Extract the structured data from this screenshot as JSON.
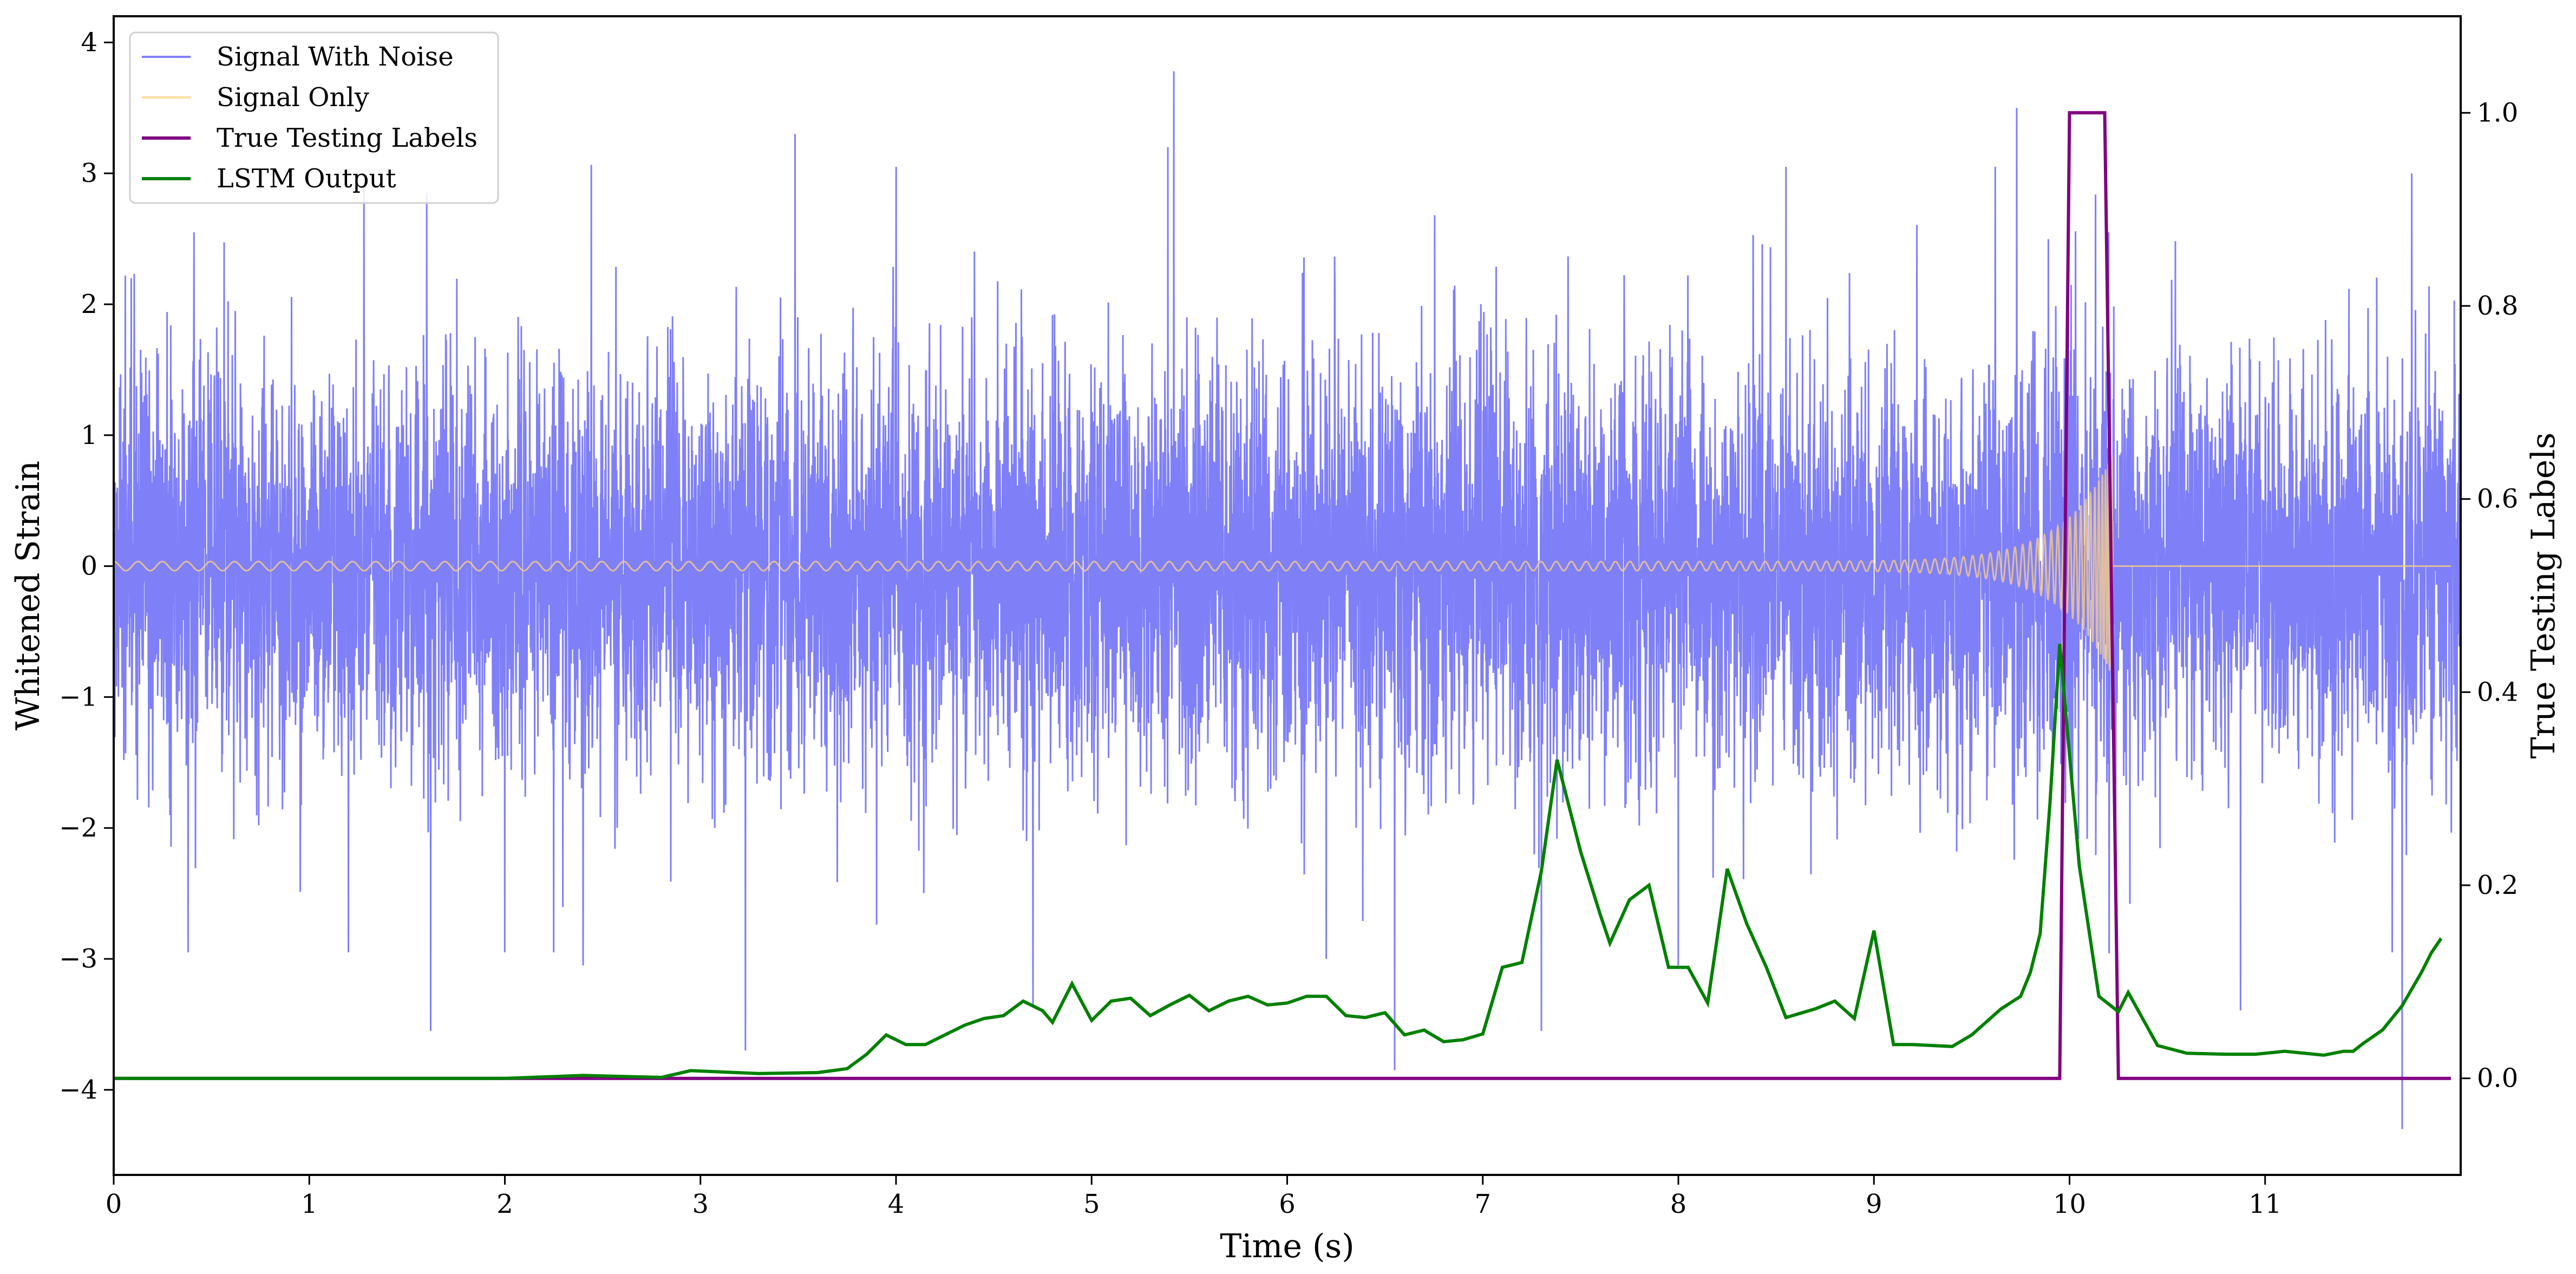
{
  "chart_data": {
    "type": "line",
    "xlabel": "Time (s)",
    "ylabel": "Whitened Strain",
    "ylabel_right": "True Testing Labels",
    "xlim": [
      0,
      12
    ],
    "ylim": [
      -4.65,
      4.2
    ],
    "ylim_right": [
      -0.1,
      1.1
    ],
    "x_ticks": [
      0,
      1,
      2,
      3,
      4,
      5,
      6,
      7,
      8,
      9,
      10,
      11
    ],
    "y_ticks": [
      -4,
      -3,
      -2,
      -1,
      0,
      1,
      2,
      3,
      4
    ],
    "y_ticks_right": [
      0.0,
      0.2,
      0.4,
      0.6,
      0.8,
      1.0
    ],
    "grid": false,
    "legend_placement": "top-left",
    "series": [
      {
        "name": "Signal With Noise",
        "axis": "left",
        "color": "#7f7ff8",
        "noise_std": 0.78,
        "peak_samples": [
          [
            0.09,
            2.2
          ],
          [
            0.38,
            -2.95
          ],
          [
            0.41,
            2.55
          ],
          [
            1.2,
            -2.95
          ],
          [
            1.28,
            2.9
          ],
          [
            1.6,
            2.85
          ],
          [
            1.62,
            -3.55
          ],
          [
            2.0,
            -2.95
          ],
          [
            2.25,
            -2.95
          ],
          [
            2.4,
            -3.05
          ],
          [
            3.23,
            -3.7
          ],
          [
            4.0,
            3.05
          ],
          [
            4.7,
            -3.35
          ],
          [
            5.39,
            3.2
          ],
          [
            5.42,
            3.78
          ],
          [
            6.2,
            -3.0
          ],
          [
            6.55,
            -3.85
          ],
          [
            7.3,
            -3.55
          ],
          [
            8.0,
            -3.05
          ],
          [
            8.55,
            3.05
          ],
          [
            9.62,
            3.05
          ],
          [
            9.73,
            3.5
          ],
          [
            10.2,
            2.55
          ],
          [
            11.65,
            -2.95
          ],
          [
            11.7,
            -4.3
          ],
          [
            11.75,
            3.0
          ]
        ]
      },
      {
        "name": "Signal Only",
        "axis": "left",
        "color": "#ffd27f",
        "chirp_f0_hz": 8,
        "chirp_merger_s": 10.22,
        "chirp_peak_amplitude": 0.85
      },
      {
        "name": "True Testing Labels",
        "axis": "right",
        "color": "#800080",
        "x": [
          0,
          9.95,
          10.0,
          10.18,
          10.25,
          11.95
        ],
        "y": [
          0,
          0,
          1,
          1,
          0,
          0
        ]
      },
      {
        "name": "LSTM Output",
        "axis": "right",
        "color": "#008000",
        "x": [
          0,
          1.2,
          2.0,
          2.4,
          2.8,
          2.95,
          3.3,
          3.6,
          3.75,
          3.85,
          3.95,
          4.05,
          4.15,
          4.25,
          4.35,
          4.45,
          4.55,
          4.65,
          4.75,
          4.8,
          4.9,
          5.0,
          5.1,
          5.2,
          5.3,
          5.4,
          5.5,
          5.6,
          5.7,
          5.8,
          5.9,
          6.0,
          6.1,
          6.2,
          6.3,
          6.4,
          6.5,
          6.6,
          6.7,
          6.8,
          6.9,
          7.0,
          7.1,
          7.2,
          7.3,
          7.38,
          7.5,
          7.6,
          7.65,
          7.75,
          7.85,
          7.95,
          8.05,
          8.15,
          8.25,
          8.35,
          8.45,
          8.55,
          8.7,
          8.8,
          8.9,
          9.0,
          9.1,
          9.2,
          9.4,
          9.5,
          9.65,
          9.75,
          9.8,
          9.85,
          9.9,
          9.95,
          10.05,
          10.15,
          10.25,
          10.3,
          10.45,
          10.6,
          10.8,
          10.95,
          11.1,
          11.3,
          11.4,
          11.45,
          11.5,
          11.6,
          11.7,
          11.8,
          11.85,
          11.9
        ],
        "y": [
          0.0,
          0.0,
          0.0,
          0.003,
          0.001,
          0.008,
          0.005,
          0.006,
          0.01,
          0.025,
          0.045,
          0.035,
          0.035,
          0.045,
          0.055,
          0.062,
          0.065,
          0.08,
          0.07,
          0.058,
          0.098,
          0.06,
          0.08,
          0.083,
          0.065,
          0.076,
          0.086,
          0.07,
          0.08,
          0.085,
          0.076,
          0.078,
          0.085,
          0.085,
          0.065,
          0.063,
          0.068,
          0.045,
          0.05,
          0.038,
          0.04,
          0.046,
          0.115,
          0.12,
          0.215,
          0.33,
          0.235,
          0.17,
          0.14,
          0.185,
          0.2,
          0.115,
          0.115,
          0.078,
          0.217,
          0.16,
          0.115,
          0.063,
          0.072,
          0.08,
          0.062,
          0.153,
          0.035,
          0.035,
          0.033,
          0.045,
          0.072,
          0.085,
          0.11,
          0.15,
          0.285,
          0.45,
          0.22,
          0.085,
          0.069,
          0.089,
          0.034,
          0.026,
          0.025,
          0.025,
          0.028,
          0.024,
          0.028,
          0.028,
          0.036,
          0.05,
          0.075,
          0.11,
          0.13,
          0.145
        ]
      }
    ],
    "legend": [
      "Signal With Noise",
      "Signal Only",
      "True Testing Labels",
      "LSTM Output"
    ]
  }
}
